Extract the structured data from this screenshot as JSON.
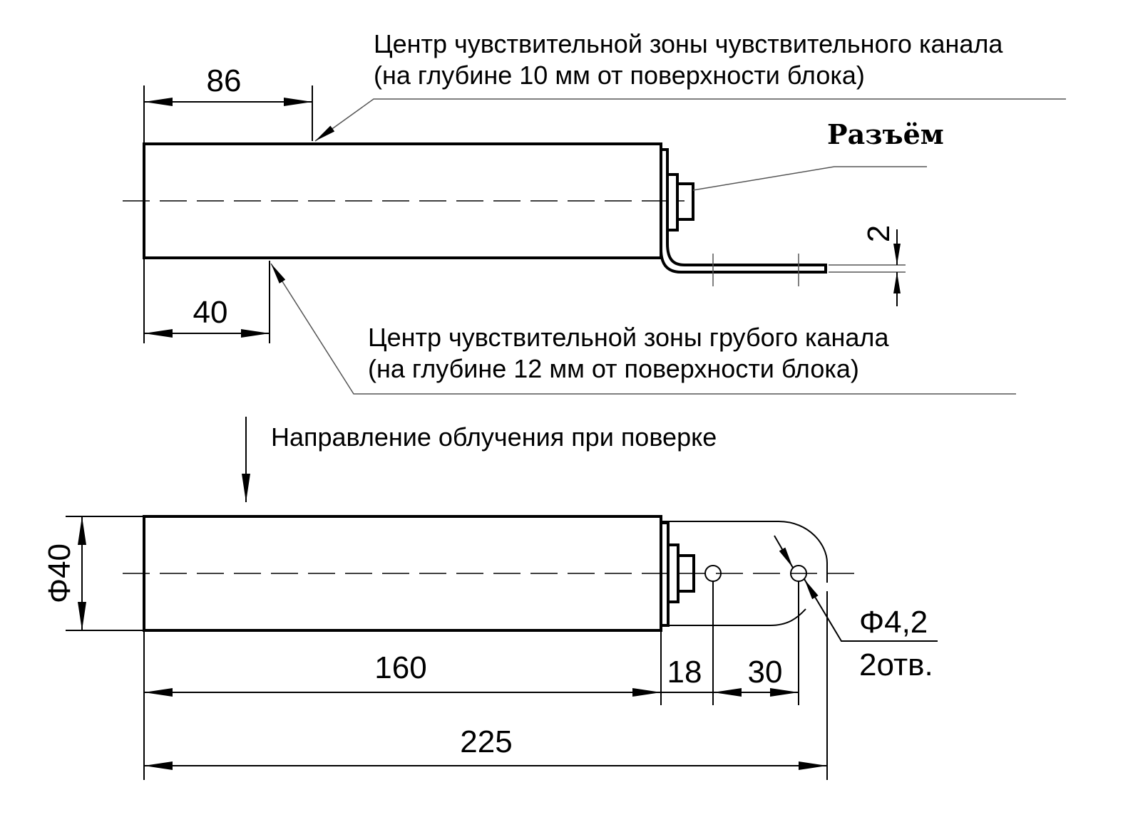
{
  "top_view": {
    "sensitive_channel_note": {
      "line1": "Центр чувствительной зоны чувствительного канала",
      "line2": "(на глубине 10 мм от поверхности блока)"
    },
    "coarse_channel_note": {
      "line1": "Центр чувствительной зоны грубого канала",
      "line2": "(на глубине 12 мм от поверхности блока)"
    },
    "connector_label": "Разъём",
    "dim_86": "86",
    "dim_40": "40",
    "dim_2": "2"
  },
  "bottom_view": {
    "irradiation_note": "Направление облучения при поверке",
    "dim_diameter_40": "Φ40",
    "dim_160": "160",
    "dim_18": "18",
    "dim_30": "30",
    "dim_225": "225",
    "hole_diameter": "Φ4,2",
    "hole_count": "2отв."
  }
}
